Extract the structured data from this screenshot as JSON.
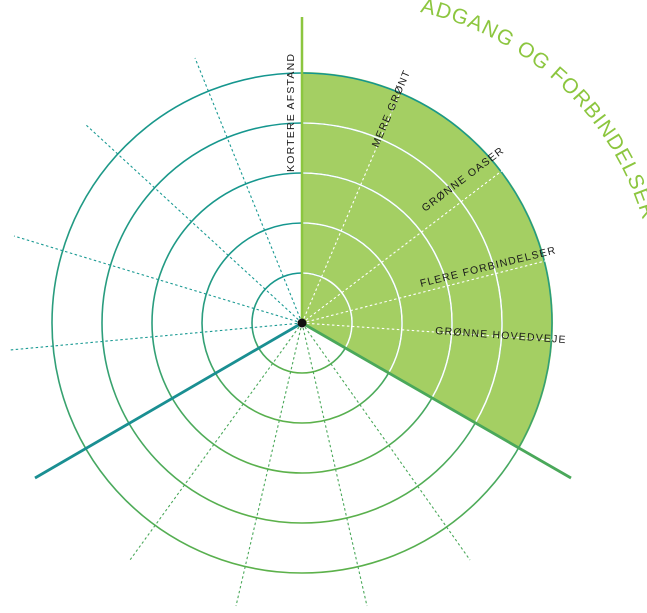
{
  "title": "ADGANG OG FORBINDELSER",
  "vertical_label": "KORTERE AFSTAND",
  "spoke_labels": [
    "MERE GRØNT",
    "GRØNNE OASER",
    "FLERE FORBINDELSER",
    "GRØNNE HOVEDVEJE"
  ],
  "colors": {
    "highlight_fill": "#a4cf63",
    "title_green": "#8cc63f",
    "teal": "#1a9a93",
    "green": "#4aa85a",
    "center_dot": "#111111",
    "text": "#1a1a1a"
  }
}
